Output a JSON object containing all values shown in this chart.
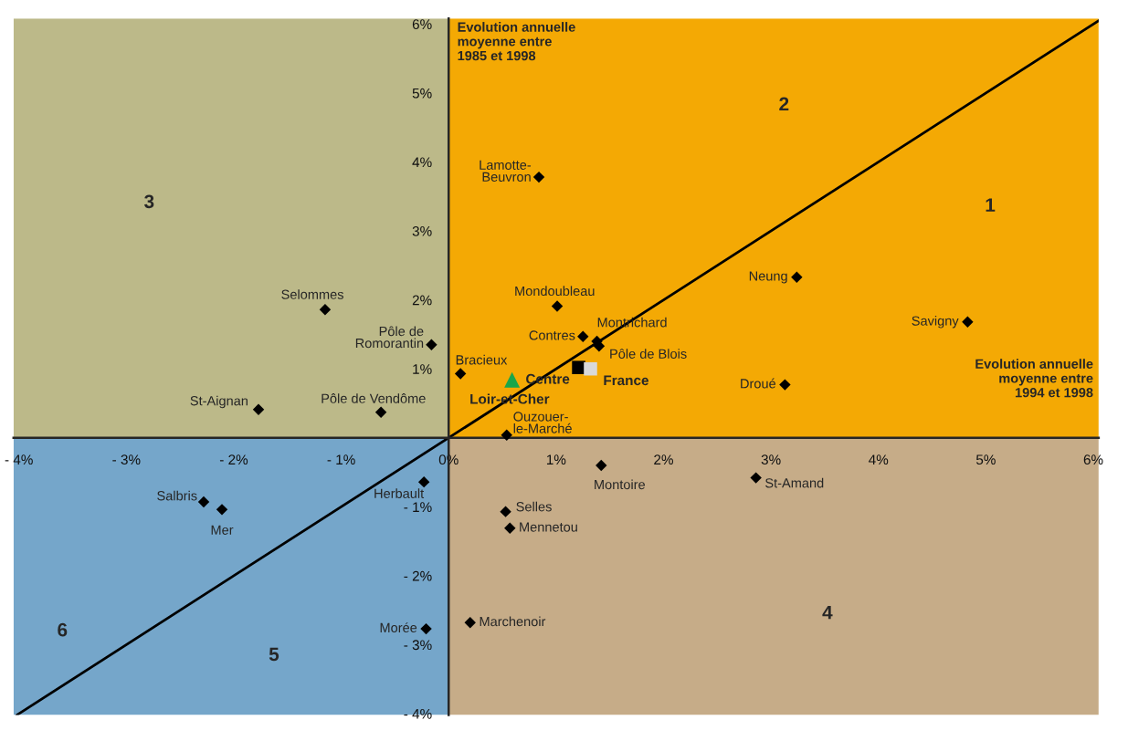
{
  "chart_data": {
    "type": "scatter",
    "xlabel": "Evolution annuelle\nmoyenne entre\n1994 et 1998",
    "ylabel": "Evolution annuelle\nmoyenne entre\n1985 et 1998",
    "xlim": [
      -4.05,
      6.05
    ],
    "ylim": [
      -4.02,
      6.08
    ],
    "xticks": [
      {
        "value": -4,
        "label": "- 4%"
      },
      {
        "value": -3,
        "label": "- 3%"
      },
      {
        "value": -2,
        "label": "- 2%"
      },
      {
        "value": -1,
        "label": "- 1%"
      },
      {
        "value": 0,
        "label": "0%"
      },
      {
        "value": 1,
        "label": "1%"
      },
      {
        "value": 2,
        "label": "2%"
      },
      {
        "value": 3,
        "label": "3%"
      },
      {
        "value": 4,
        "label": "4%"
      },
      {
        "value": 5,
        "label": "5%"
      },
      {
        "value": 6,
        "label": "6%"
      }
    ],
    "yticks": [
      {
        "value": -4,
        "label": "- 4%"
      },
      {
        "value": -3,
        "label": "- 3%"
      },
      {
        "value": -2,
        "label": "- 2%"
      },
      {
        "value": -1,
        "label": "- 1%"
      },
      {
        "value": 1,
        "label": "1%"
      },
      {
        "value": 2,
        "label": "2%"
      },
      {
        "value": 3,
        "label": "3%"
      },
      {
        "value": 4,
        "label": "4%"
      },
      {
        "value": 5,
        "label": "5%"
      },
      {
        "value": 6,
        "label": "6%"
      }
    ],
    "grid": false,
    "legend": false,
    "series": [
      {
        "type": "line",
        "color": "#000000",
        "marker": "none",
        "x": [
          -4.02,
          6.05
        ],
        "values": [
          -4.02,
          6.05
        ]
      },
      {
        "color": "#000000",
        "marker": "diamond",
        "x": [
          0.84,
          1.01,
          1.25,
          1.38,
          1.4,
          3.24,
          4.83,
          3.13,
          -1.15,
          -0.16,
          0.11,
          -1.77,
          -0.63,
          0.54,
          1.42,
          2.86,
          -0.23,
          -2.28,
          -2.11,
          0.53,
          0.57,
          -0.21,
          0.2
        ],
        "values": [
          3.78,
          1.91,
          1.47,
          1.4,
          1.33,
          2.33,
          1.68,
          0.77,
          1.86,
          1.35,
          0.93,
          0.41,
          0.37,
          0.04,
          -0.4,
          -0.58,
          -0.64,
          -0.93,
          -1.04,
          -1.07,
          -1.31,
          -2.77,
          -2.68
        ]
      },
      {
        "name": "Centre",
        "color": "#000000",
        "marker": "square",
        "x": [
          1.21
        ],
        "values": [
          1.02
        ]
      },
      {
        "name": "France",
        "color": "#d9d9d9",
        "marker": "square",
        "x": [
          1.32
        ],
        "values": [
          1.0
        ]
      },
      {
        "name": "Loir-et-Cher",
        "color": "#1aa64a",
        "marker": "triangle",
        "x": [
          0.59
        ],
        "values": [
          0.84
        ]
      }
    ],
    "annotations": [
      {
        "text": "Lamotte-\nBeuvron",
        "x": 0.84,
        "y": 3.78
      },
      {
        "text": "Mondoubleau",
        "x": 1.01,
        "y": 1.91
      },
      {
        "text": "Contres",
        "x": 1.25,
        "y": 1.47
      },
      {
        "text": "Montrichard",
        "x": 1.38,
        "y": 1.4
      },
      {
        "text": "Pôle de Blois",
        "x": 1.4,
        "y": 1.33
      },
      {
        "text": "Neung",
        "x": 3.24,
        "y": 2.33
      },
      {
        "text": "Savigny",
        "x": 4.83,
        "y": 1.68
      },
      {
        "text": "Droué",
        "x": 3.13,
        "y": 0.77
      },
      {
        "text": "Selommes",
        "x": -1.15,
        "y": 1.86
      },
      {
        "text": "Pôle de\nRomorantin",
        "x": -0.16,
        "y": 1.35
      },
      {
        "text": "Bracieux",
        "x": 0.11,
        "y": 0.93
      },
      {
        "text": "St-Aignan",
        "x": -1.77,
        "y": 0.41
      },
      {
        "text": "Pôle de Vendôme",
        "x": -0.63,
        "y": 0.37
      },
      {
        "text": "Ouzouer-\nle-Marché",
        "x": 0.54,
        "y": 0.04
      },
      {
        "text": "Montoire",
        "x": 1.42,
        "y": -0.4
      },
      {
        "text": "St-Amand",
        "x": 2.86,
        "y": -0.58
      },
      {
        "text": "Herbault",
        "x": -0.23,
        "y": -0.64
      },
      {
        "text": "Salbris",
        "x": -2.28,
        "y": -0.93
      },
      {
        "text": "Mer",
        "x": -2.11,
        "y": -1.04
      },
      {
        "text": "Selles",
        "x": 0.53,
        "y": -1.07
      },
      {
        "text": "Mennetou",
        "x": 0.57,
        "y": -1.31
      },
      {
        "text": "Morée",
        "x": -0.21,
        "y": -2.77
      },
      {
        "text": "Marchenoir",
        "x": 0.2,
        "y": -2.68
      },
      "1",
      "2",
      "3",
      "4",
      "5",
      "6"
    ]
  }
}
